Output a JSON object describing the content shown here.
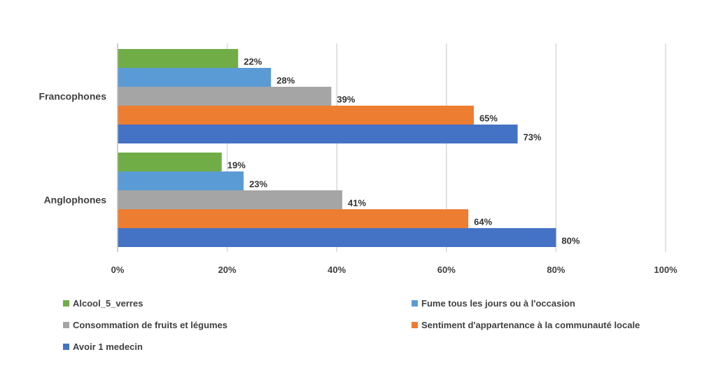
{
  "chart_data": {
    "type": "bar",
    "orientation": "horizontal",
    "title": "",
    "xlabel": "",
    "ylabel": "",
    "xlim": [
      0,
      100
    ],
    "x_ticks": [
      "0%",
      "20%",
      "40%",
      "60%",
      "80%",
      "100%"
    ],
    "x_tick_values": [
      0,
      20,
      40,
      60,
      80,
      100
    ],
    "grid": true,
    "legend_position": "bottom",
    "categories": [
      "Francophones",
      "Anglophones"
    ],
    "series": [
      {
        "name": "Alcool_5_verres",
        "color": "#70ad47",
        "values": [
          22,
          19
        ],
        "labels": [
          "22%",
          "19%"
        ]
      },
      {
        "name": "Fume tous les jours ou à l'occasion",
        "color": "#5b9bd5",
        "values": [
          28,
          23
        ],
        "labels": [
          "28%",
          "23%"
        ]
      },
      {
        "name": "Consommation de fruits et légumes",
        "color": "#a5a5a5",
        "values": [
          39,
          41
        ],
        "labels": [
          "39%",
          "41%"
        ]
      },
      {
        "name": "Sentiment d'appartenance à la communauté locale",
        "color": "#ed7d31",
        "values": [
          65,
          64
        ],
        "labels": [
          "65%",
          "64%"
        ]
      },
      {
        "name": "Avoir 1 medecin",
        "color": "#4472c4",
        "values": [
          73,
          80
        ],
        "labels": [
          "73%",
          "80%"
        ]
      }
    ]
  }
}
